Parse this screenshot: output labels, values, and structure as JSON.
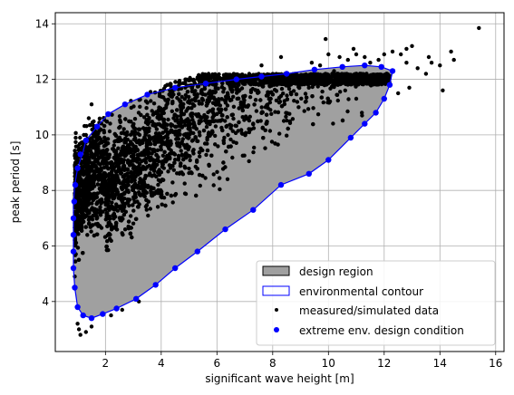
{
  "chart_data": {
    "type": "scatter",
    "xlabel": "significant wave height [m]",
    "ylabel": "peak period [s]",
    "xlim": [
      0.2,
      16.3
    ],
    "ylim": [
      2.2,
      14.4
    ],
    "xticks": [
      2,
      4,
      6,
      8,
      10,
      12,
      14,
      16
    ],
    "yticks": [
      4,
      6,
      8,
      10,
      12,
      14
    ],
    "grid": true,
    "legend_position": "lower-right",
    "legend": [
      {
        "label": "design region",
        "kind": "patch",
        "fill": "#a0a0a0",
        "stroke": "#000000"
      },
      {
        "label": "environmental contour",
        "kind": "patch",
        "fill": "none",
        "stroke": "#0000ff"
      },
      {
        "label": "measured/simulated data",
        "kind": "marker",
        "color": "#000000"
      },
      {
        "label": "extreme env. design condition",
        "kind": "marker",
        "color": "#0000ff"
      }
    ],
    "design_region_fill": "#a0a0a0",
    "contour_color": "#0000ff",
    "data_color": "#000000",
    "environmental_contour": [
      [
        0.85,
        5.8
      ],
      [
        0.85,
        6.8
      ],
      [
        0.85,
        7.5
      ],
      [
        0.9,
        8.2
      ],
      [
        1.0,
        8.8
      ],
      [
        1.2,
        9.4
      ],
      [
        1.3,
        9.8
      ],
      [
        1.7,
        10.3
      ],
      [
        2.1,
        10.75
      ],
      [
        2.7,
        11.1
      ],
      [
        3.5,
        11.45
      ],
      [
        4.5,
        11.7
      ],
      [
        5.6,
        11.85
      ],
      [
        6.7,
        12.0
      ],
      [
        7.6,
        12.1
      ],
      [
        8.5,
        12.2
      ],
      [
        9.5,
        12.35
      ],
      [
        10.5,
        12.45
      ],
      [
        11.3,
        12.5
      ],
      [
        11.9,
        12.45
      ],
      [
        12.3,
        12.3
      ],
      [
        12.2,
        11.8
      ],
      [
        12.0,
        11.3
      ],
      [
        11.7,
        10.8
      ],
      [
        11.3,
        10.4
      ],
      [
        10.8,
        9.9
      ],
      [
        10.0,
        9.1
      ],
      [
        9.3,
        8.6
      ],
      [
        8.3,
        8.2
      ],
      [
        7.3,
        7.3
      ],
      [
        6.3,
        6.6
      ],
      [
        5.3,
        5.8
      ],
      [
        4.5,
        5.2
      ],
      [
        3.8,
        4.6
      ],
      [
        3.1,
        4.1
      ],
      [
        2.4,
        3.75
      ],
      [
        1.9,
        3.55
      ],
      [
        1.5,
        3.4
      ],
      [
        1.2,
        3.5
      ],
      [
        1.0,
        3.8
      ],
      [
        0.9,
        4.5
      ],
      [
        0.85,
        5.2
      ]
    ],
    "extreme_design_conditions": [
      [
        0.85,
        5.8
      ],
      [
        0.85,
        6.4
      ],
      [
        0.85,
        7.0
      ],
      [
        0.88,
        7.6
      ],
      [
        0.92,
        8.2
      ],
      [
        1.0,
        8.8
      ],
      [
        1.1,
        9.3
      ],
      [
        1.3,
        9.8
      ],
      [
        1.7,
        10.3
      ],
      [
        2.1,
        10.75
      ],
      [
        2.7,
        11.1
      ],
      [
        3.5,
        11.45
      ],
      [
        4.5,
        11.7
      ],
      [
        5.6,
        11.85
      ],
      [
        6.7,
        12.0
      ],
      [
        7.6,
        12.1
      ],
      [
        8.5,
        12.2
      ],
      [
        9.5,
        12.35
      ],
      [
        10.5,
        12.45
      ],
      [
        11.3,
        12.5
      ],
      [
        11.9,
        12.45
      ],
      [
        12.3,
        12.3
      ],
      [
        12.2,
        11.8
      ],
      [
        12.0,
        11.3
      ],
      [
        11.7,
        10.8
      ],
      [
        11.3,
        10.4
      ],
      [
        10.8,
        9.9
      ],
      [
        10.0,
        9.1
      ],
      [
        9.3,
        8.6
      ],
      [
        8.3,
        8.2
      ],
      [
        7.3,
        7.3
      ],
      [
        6.3,
        6.6
      ],
      [
        5.3,
        5.8
      ],
      [
        4.5,
        5.2
      ],
      [
        3.8,
        4.6
      ],
      [
        3.1,
        4.1
      ],
      [
        2.4,
        3.75
      ],
      [
        1.9,
        3.55
      ],
      [
        1.5,
        3.4
      ],
      [
        1.2,
        3.5
      ],
      [
        1.0,
        3.8
      ],
      [
        0.9,
        4.5
      ],
      [
        0.85,
        5.2
      ]
    ],
    "measured_outliers": [
      [
        15.4,
        13.85
      ],
      [
        14.4,
        13.0
      ],
      [
        14.5,
        12.7
      ],
      [
        14.0,
        12.5
      ],
      [
        13.6,
        12.8
      ],
      [
        13.2,
        12.4
      ],
      [
        13.0,
        13.2
      ],
      [
        12.8,
        13.1
      ],
      [
        12.6,
        12.9
      ],
      [
        12.9,
        11.7
      ],
      [
        12.5,
        11.5
      ],
      [
        12.3,
        13.0
      ],
      [
        12.0,
        12.9
      ],
      [
        11.8,
        12.7
      ],
      [
        11.5,
        12.6
      ],
      [
        11.3,
        12.8
      ],
      [
        11.0,
        12.9
      ],
      [
        10.9,
        13.1
      ],
      [
        10.7,
        12.7
      ],
      [
        10.4,
        12.8
      ],
      [
        10.0,
        12.9
      ],
      [
        9.9,
        13.45
      ],
      [
        9.7,
        12.5
      ],
      [
        9.4,
        12.6
      ],
      [
        11.0,
        11.3
      ],
      [
        11.2,
        10.8
      ],
      [
        10.6,
        11.6
      ],
      [
        10.2,
        12.3
      ],
      [
        13.7,
        12.6
      ],
      [
        14.1,
        11.6
      ],
      [
        13.5,
        12.2
      ],
      [
        12.8,
        12.6
      ],
      [
        8.3,
        12.8
      ],
      [
        7.6,
        12.5
      ],
      [
        1.5,
        11.1
      ],
      [
        1.4,
        10.6
      ],
      [
        1.3,
        10.0
      ],
      [
        1.0,
        3.2
      ],
      [
        1.05,
        3.0
      ],
      [
        1.1,
        2.8
      ],
      [
        1.3,
        2.9
      ],
      [
        1.5,
        3.1
      ],
      [
        2.2,
        3.5
      ],
      [
        2.6,
        3.7
      ],
      [
        3.2,
        4.0
      ],
      [
        0.9,
        4.9
      ],
      [
        0.92,
        6.1
      ]
    ],
    "measured_density_region": {
      "x_range": [
        0.9,
        12.2
      ],
      "description_none": ""
    }
  }
}
